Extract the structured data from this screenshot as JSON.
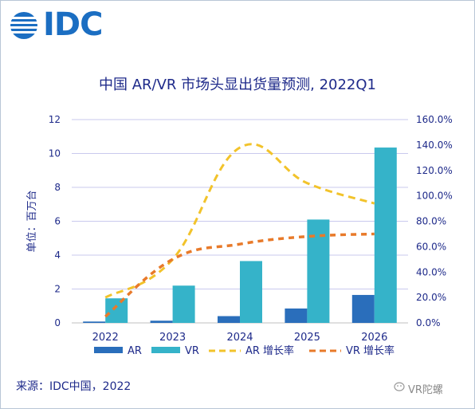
{
  "logo_text": "IDC",
  "source": "来源：IDC中国，2022",
  "watermark": "VR陀螺",
  "colors": {
    "ar_bar": "#2a6ebb",
    "vr_bar": "#35b3c9",
    "ar_rate": "#f2c32b",
    "vr_rate": "#e87a2a",
    "grid": "#c9c9ee",
    "text": "#1e2a8a",
    "logo": "#1b6ec2"
  },
  "chart_data": {
    "type": "bar",
    "title": "中国 AR/VR 市场头显出货量预测, 2022Q1",
    "ylabel": "单位：百万台",
    "categories": [
      "2022",
      "2023",
      "2024",
      "2025",
      "2026"
    ],
    "ylim": [
      0,
      12
    ],
    "yticks": [
      "0",
      "2",
      "4",
      "6",
      "8",
      "10",
      "12"
    ],
    "y2lim": [
      0,
      160
    ],
    "y2ticks": [
      "0.0%",
      "20.0%",
      "40.0%",
      "60.0%",
      "80.0%",
      "100.0%",
      "120.0%",
      "140.0%",
      "160.0%"
    ],
    "grid": true,
    "legend_position": "bottom",
    "series": [
      {
        "name": "AR",
        "kind": "bar",
        "axis": "left",
        "values": [
          0.08,
          0.13,
          0.4,
          0.85,
          1.65
        ]
      },
      {
        "name": "VR",
        "kind": "bar",
        "axis": "left",
        "values": [
          1.45,
          2.2,
          3.65,
          6.1,
          10.35
        ]
      },
      {
        "name": "AR 增长率",
        "kind": "dashed-line",
        "axis": "right",
        "values": [
          20,
          50,
          138,
          110,
          94
        ]
      },
      {
        "name": "VR 增长率",
        "kind": "dashed-line",
        "axis": "right",
        "values": [
          5,
          50,
          62,
          68,
          70
        ]
      }
    ]
  }
}
